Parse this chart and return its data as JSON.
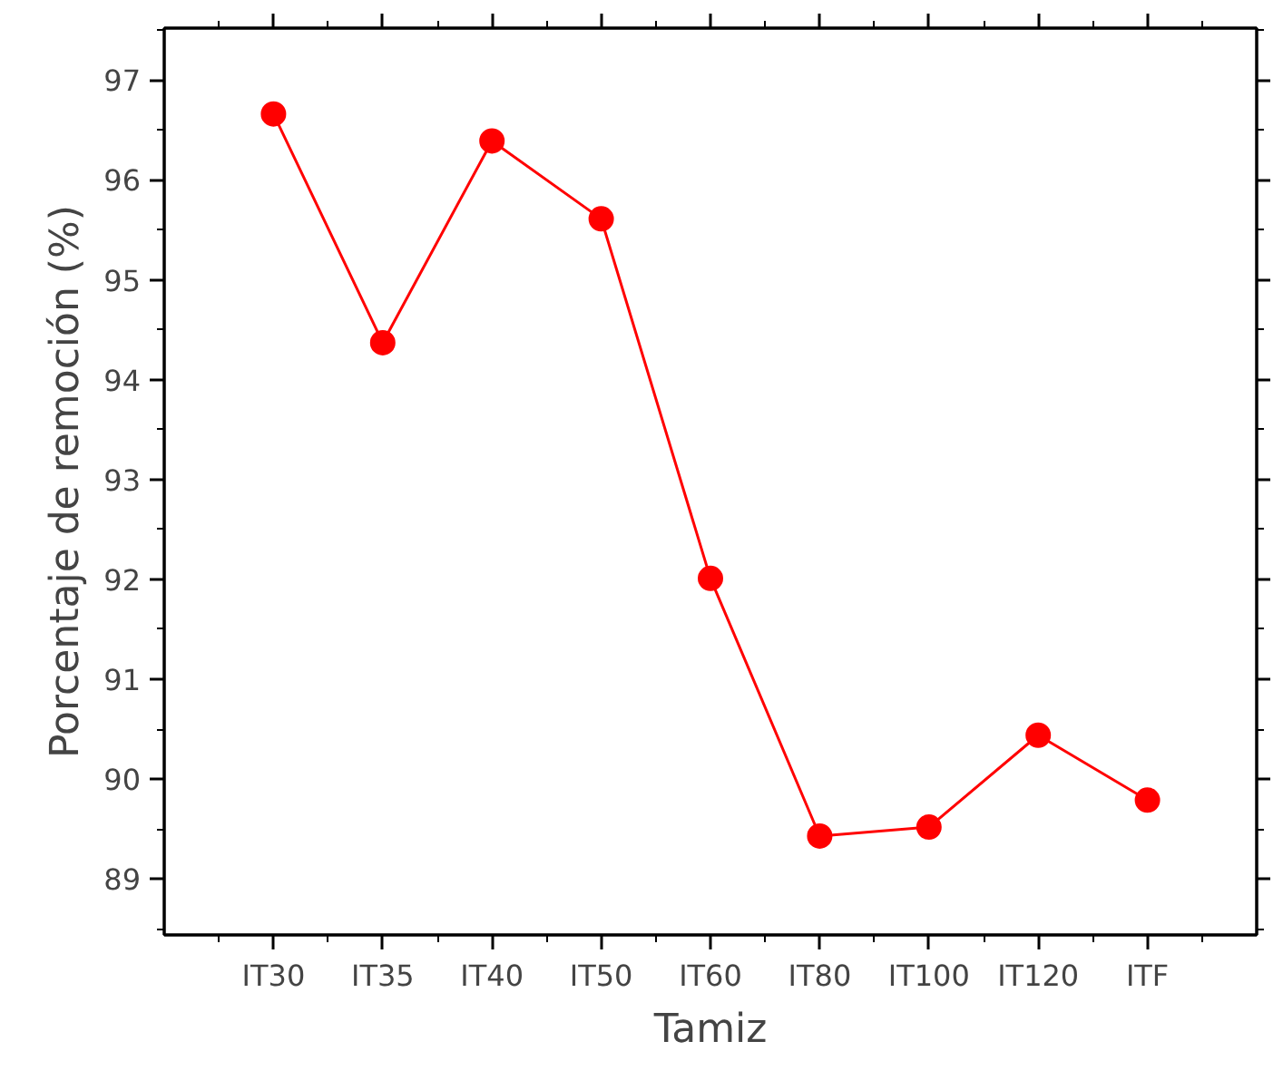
{
  "chart_data": {
    "type": "line",
    "xlabel": "Tamiz",
    "ylabel": "Porcentaje de remoción (%)",
    "categories": [
      "IT30",
      "IT35",
      "IT40",
      "IT50",
      "IT60",
      "IT80",
      "IT100",
      "IT120",
      "ITF"
    ],
    "series": [
      {
        "color": "#ff0000",
        "values": [
          96.66,
          94.37,
          96.39,
          95.61,
          92.01,
          89.43,
          89.52,
          90.44,
          89.79
        ]
      }
    ],
    "ylim": [
      88.44,
      97.52
    ],
    "yticks": [
      89,
      90,
      91,
      92,
      93,
      94,
      95,
      96,
      97
    ],
    "marker": "circle",
    "line_style": "solid",
    "grid": false
  }
}
